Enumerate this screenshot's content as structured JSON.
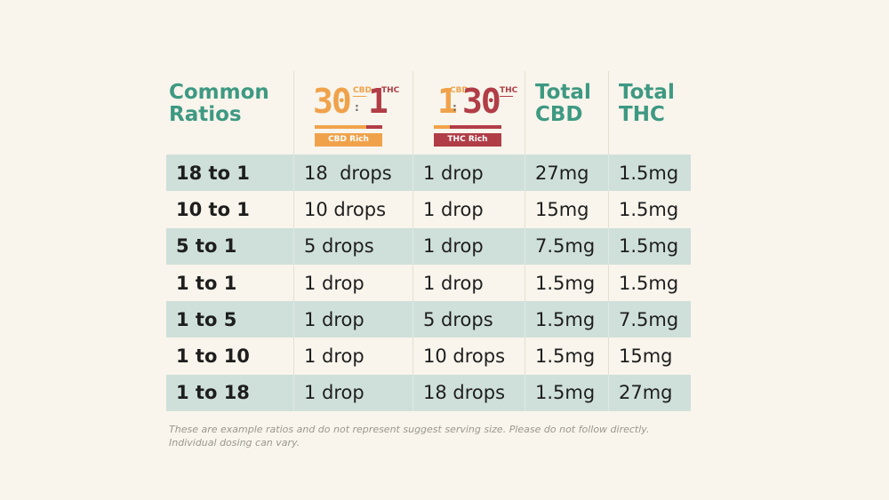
{
  "header": {
    "ratios_label": "Common\nRatios",
    "cbd_rich_logo": {
      "left_num": "30",
      "left_sub": "CBD",
      "right_num": "1",
      "right_sub": "THC",
      "colon": ":",
      "tag": "CBD Rich"
    },
    "thc_rich_logo": {
      "left_num": "1",
      "left_sub": "CBD",
      "right_num": "30",
      "right_sub": "THC",
      "colon": ":",
      "tag": "THC Rich"
    },
    "total_cbd_label": "Total\nCBD",
    "total_thc_label": "Total\nTHC"
  },
  "rows": [
    {
      "ratio": "18 to 1",
      "cbd_rich": "18  drops",
      "thc_rich": "1 drop",
      "total_cbd": "27mg",
      "total_thc": "1.5mg"
    },
    {
      "ratio": "10 to 1",
      "cbd_rich": "10 drops",
      "thc_rich": "1 drop",
      "total_cbd": "15mg",
      "total_thc": "1.5mg"
    },
    {
      "ratio": "5 to 1",
      "cbd_rich": "5 drops",
      "thc_rich": "1 drop",
      "total_cbd": "7.5mg",
      "total_thc": "1.5mg"
    },
    {
      "ratio": "1 to 1",
      "cbd_rich": "1 drop",
      "thc_rich": "1 drop",
      "total_cbd": "1.5mg",
      "total_thc": "1.5mg"
    },
    {
      "ratio": "1 to 5",
      "cbd_rich": "1 drop",
      "thc_rich": "5 drops",
      "total_cbd": "1.5mg",
      "total_thc": "7.5mg"
    },
    {
      "ratio": "1 to 10",
      "cbd_rich": "1 drop",
      "thc_rich": "10 drops",
      "total_cbd": "1.5mg",
      "total_thc": "15mg"
    },
    {
      "ratio": "1 to 18",
      "cbd_rich": "1 drop",
      "thc_rich": "18 drops",
      "total_cbd": "1.5mg",
      "total_thc": "27mg"
    }
  ],
  "disclaimer": "These are example ratios and do not represent suggest serving size. Please do not follow directly. Individual dosing can vary.",
  "colors": {
    "background": "#f9f5ec",
    "header_teal": "#3e9982",
    "row_shade": "#cfe0da",
    "cbd_orange": "#f0a24b",
    "thc_red": "#b13d47"
  }
}
